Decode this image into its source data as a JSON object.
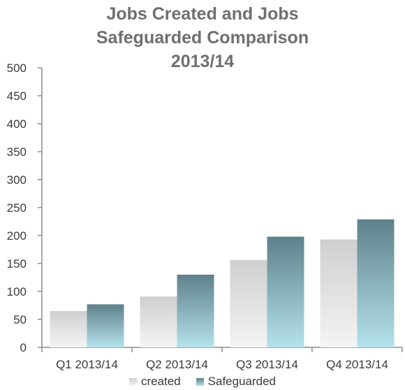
{
  "chart_data": {
    "type": "bar",
    "title_lines": [
      "Jobs Created and  Jobs",
      "Safeguarded Comparison",
      "2013/14"
    ],
    "categories": [
      "Q1 2013/14",
      "Q2 2013/14",
      "Q3 2013/14",
      "Q4 2013/14"
    ],
    "series": [
      {
        "name": "created",
        "values": [
          65,
          91,
          156,
          193
        ]
      },
      {
        "name": "Safeguarded",
        "values": [
          77,
          130,
          198,
          229
        ]
      }
    ],
    "ylim": [
      0,
      500
    ],
    "yticks": [
      0,
      50,
      100,
      150,
      200,
      250,
      300,
      350,
      400,
      450,
      500
    ],
    "grid": false,
    "legend_position": "bottom",
    "colors": {
      "created_top": "#cfcfcf",
      "created_bottom": "#f4f4f4",
      "safeguarded_top": "#5e818b",
      "safeguarded_bottom": "#b5e2ec",
      "axis": "#8c8c8c"
    }
  }
}
